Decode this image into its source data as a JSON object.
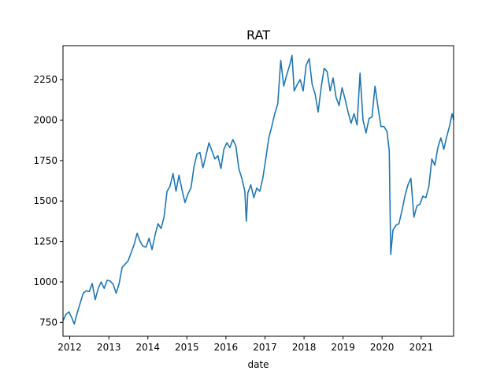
{
  "chart_data": {
    "type": "line",
    "title": "RAT",
    "xlabel": "date",
    "ylabel": "",
    "grid": false,
    "legend": "none",
    "xlim": [
      "2011-10-30",
      "2021-10-31"
    ],
    "ylim": [
      664,
      2460
    ],
    "x_ticks": [
      "2012",
      "2013",
      "2014",
      "2015",
      "2016",
      "2017",
      "2018",
      "2019",
      "2020",
      "2021"
    ],
    "y_ticks": [
      "750",
      "1000",
      "1250",
      "1500",
      "1750",
      "2000",
      "2250"
    ],
    "series": [
      {
        "color": "#1f77b4",
        "points": [
          [
            "2011-10-30",
            760
          ],
          [
            "2011-11-27",
            800
          ],
          [
            "2011-12-25",
            815
          ],
          [
            "2012-01-22",
            775
          ],
          [
            "2012-02-12",
            740
          ],
          [
            "2012-03-11",
            810
          ],
          [
            "2012-04-08",
            870
          ],
          [
            "2012-05-06",
            930
          ],
          [
            "2012-06-03",
            945
          ],
          [
            "2012-07-01",
            940
          ],
          [
            "2012-07-29",
            990
          ],
          [
            "2012-08-26",
            890
          ],
          [
            "2012-09-23",
            960
          ],
          [
            "2012-10-21",
            1000
          ],
          [
            "2012-11-18",
            960
          ],
          [
            "2012-12-16",
            1010
          ],
          [
            "2013-01-13",
            1005
          ],
          [
            "2013-02-10",
            985
          ],
          [
            "2013-03-10",
            930
          ],
          [
            "2013-04-07",
            990
          ],
          [
            "2013-05-05",
            1090
          ],
          [
            "2013-06-02",
            1110
          ],
          [
            "2013-06-30",
            1130
          ],
          [
            "2013-07-28",
            1180
          ],
          [
            "2013-08-25",
            1230
          ],
          [
            "2013-09-22",
            1300
          ],
          [
            "2013-10-20",
            1250
          ],
          [
            "2013-11-17",
            1220
          ],
          [
            "2013-12-15",
            1215
          ],
          [
            "2014-01-12",
            1270
          ],
          [
            "2014-02-09",
            1200
          ],
          [
            "2014-03-09",
            1290
          ],
          [
            "2014-04-06",
            1360
          ],
          [
            "2014-05-04",
            1330
          ],
          [
            "2014-06-01",
            1400
          ],
          [
            "2014-06-29",
            1560
          ],
          [
            "2014-07-27",
            1590
          ],
          [
            "2014-08-24",
            1670
          ],
          [
            "2014-09-21",
            1560
          ],
          [
            "2014-10-19",
            1660
          ],
          [
            "2014-11-16",
            1570
          ],
          [
            "2014-12-14",
            1490
          ],
          [
            "2015-01-11",
            1545
          ],
          [
            "2015-02-08",
            1580
          ],
          [
            "2015-03-08",
            1710
          ],
          [
            "2015-04-05",
            1790
          ],
          [
            "2015-05-03",
            1800
          ],
          [
            "2015-05-31",
            1705
          ],
          [
            "2015-06-28",
            1780
          ],
          [
            "2015-07-26",
            1860
          ],
          [
            "2015-08-23",
            1810
          ],
          [
            "2015-09-20",
            1760
          ],
          [
            "2015-10-18",
            1780
          ],
          [
            "2015-11-15",
            1700
          ],
          [
            "2015-12-13",
            1820
          ],
          [
            "2016-01-10",
            1860
          ],
          [
            "2016-02-07",
            1830
          ],
          [
            "2016-03-06",
            1880
          ],
          [
            "2016-04-03",
            1840
          ],
          [
            "2016-05-01",
            1700
          ],
          [
            "2016-05-29",
            1640
          ],
          [
            "2016-06-26",
            1560
          ],
          [
            "2016-07-10",
            1375
          ],
          [
            "2016-07-24",
            1550
          ],
          [
            "2016-08-21",
            1600
          ],
          [
            "2016-09-18",
            1520
          ],
          [
            "2016-10-16",
            1580
          ],
          [
            "2016-11-13",
            1560
          ],
          [
            "2016-12-11",
            1640
          ],
          [
            "2017-01-08",
            1760
          ],
          [
            "2017-02-05",
            1890
          ],
          [
            "2017-03-05",
            1960
          ],
          [
            "2017-04-02",
            2040
          ],
          [
            "2017-04-30",
            2100
          ],
          [
            "2017-05-28",
            2370
          ],
          [
            "2017-06-25",
            2210
          ],
          [
            "2017-07-23",
            2280
          ],
          [
            "2017-08-20",
            2340
          ],
          [
            "2017-09-10",
            2400
          ],
          [
            "2017-10-01",
            2180
          ],
          [
            "2017-10-29",
            2220
          ],
          [
            "2017-11-26",
            2250
          ],
          [
            "2017-12-24",
            2180
          ],
          [
            "2018-01-21",
            2340
          ],
          [
            "2018-02-18",
            2380
          ],
          [
            "2018-03-18",
            2220
          ],
          [
            "2018-04-15",
            2160
          ],
          [
            "2018-05-13",
            2050
          ],
          [
            "2018-06-10",
            2200
          ],
          [
            "2018-07-08",
            2320
          ],
          [
            "2018-08-05",
            2300
          ],
          [
            "2018-09-02",
            2180
          ],
          [
            "2018-09-30",
            2260
          ],
          [
            "2018-10-28",
            2140
          ],
          [
            "2018-11-25",
            2090
          ],
          [
            "2018-12-23",
            2200
          ],
          [
            "2019-01-20",
            2130
          ],
          [
            "2019-02-17",
            2050
          ],
          [
            "2019-03-17",
            1980
          ],
          [
            "2019-04-14",
            2040
          ],
          [
            "2019-05-12",
            1970
          ],
          [
            "2019-06-09",
            2290
          ],
          [
            "2019-07-07",
            2000
          ],
          [
            "2019-08-04",
            1920
          ],
          [
            "2019-09-01",
            2010
          ],
          [
            "2019-09-29",
            2020
          ],
          [
            "2019-10-27",
            2210
          ],
          [
            "2019-11-24",
            2080
          ],
          [
            "2019-12-22",
            1960
          ],
          [
            "2020-01-19",
            1960
          ],
          [
            "2020-02-16",
            1930
          ],
          [
            "2020-03-08",
            1810
          ],
          [
            "2020-03-15",
            1480
          ],
          [
            "2020-03-22",
            1170
          ],
          [
            "2020-04-12",
            1320
          ],
          [
            "2020-05-10",
            1350
          ],
          [
            "2020-06-07",
            1360
          ],
          [
            "2020-07-05",
            1440
          ],
          [
            "2020-08-02",
            1530
          ],
          [
            "2020-08-30",
            1600
          ],
          [
            "2020-09-27",
            1640
          ],
          [
            "2020-10-25",
            1400
          ],
          [
            "2020-11-22",
            1470
          ],
          [
            "2020-12-20",
            1480
          ],
          [
            "2021-01-17",
            1530
          ],
          [
            "2021-02-14",
            1520
          ],
          [
            "2021-03-14",
            1590
          ],
          [
            "2021-04-11",
            1760
          ],
          [
            "2021-05-09",
            1720
          ],
          [
            "2021-06-06",
            1830
          ],
          [
            "2021-07-04",
            1890
          ],
          [
            "2021-08-01",
            1820
          ],
          [
            "2021-08-29",
            1900
          ],
          [
            "2021-09-26",
            1970
          ],
          [
            "2021-10-17",
            2040
          ],
          [
            "2021-10-31",
            2000
          ]
        ]
      }
    ]
  }
}
